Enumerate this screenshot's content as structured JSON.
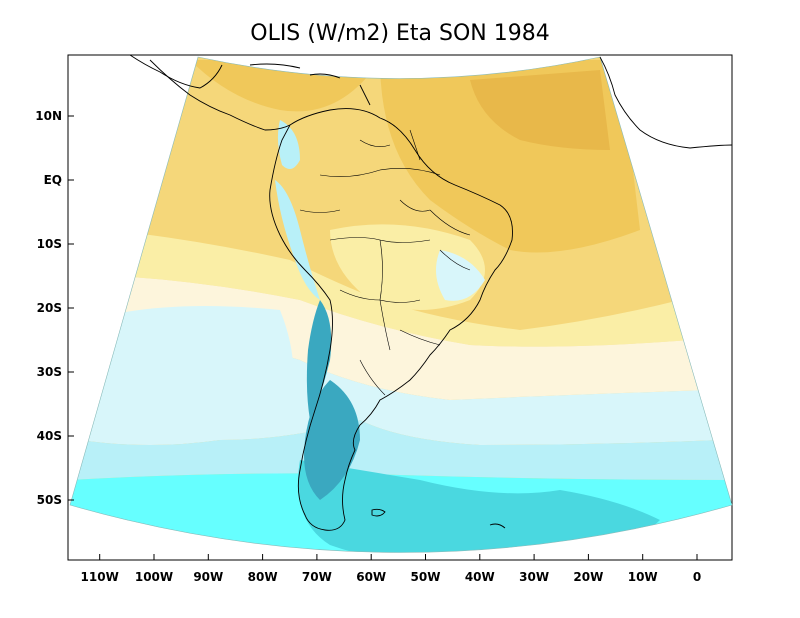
{
  "title": "OLIS (W/m2) Eta SON 1984",
  "lat_axis": {
    "labels": [
      {
        "text": "10N",
        "lat": 10
      },
      {
        "text": "EQ",
        "lat": 0
      },
      {
        "text": "10S",
        "lat": -10
      },
      {
        "text": "20S",
        "lat": -20
      },
      {
        "text": "30S",
        "lat": -30
      },
      {
        "text": "40S",
        "lat": -40
      },
      {
        "text": "50S",
        "lat": -50
      }
    ]
  },
  "lon_axis": {
    "labels": [
      {
        "text": "110W",
        "lon": -110
      },
      {
        "text": "100W",
        "lon": -100
      },
      {
        "text": "90W",
        "lon": -90
      },
      {
        "text": "80W",
        "lon": -80
      },
      {
        "text": "70W",
        "lon": -70
      },
      {
        "text": "60W",
        "lon": -60
      },
      {
        "text": "50W",
        "lon": -50
      },
      {
        "text": "40W",
        "lon": -40
      },
      {
        "text": "30W",
        "lon": -30
      },
      {
        "text": "20W",
        "lon": -20
      },
      {
        "text": "10W",
        "lon": -10
      },
      {
        "text": "0",
        "lon": 0
      }
    ]
  },
  "colors": {
    "band_darkest_orange": "#e8b84a",
    "band_dark_orange": "#f0c85a",
    "band_orange": "#f5d77a",
    "band_light_yellow": "#faeea6",
    "band_cream": "#fdf5dc",
    "band_pale_cyan": "#d8f6fa",
    "band_light_cyan": "#b8f0f8",
    "band_cyan": "#66ffff",
    "band_teal": "#4ad8e0",
    "band_dark_teal": "#3aa8c0",
    "coastline": "#000000"
  }
}
